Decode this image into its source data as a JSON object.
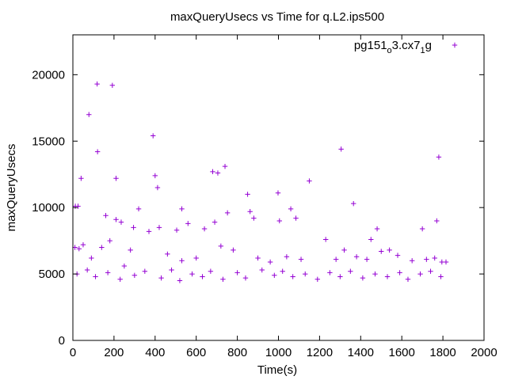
{
  "chart_data": {
    "type": "scatter",
    "title": "maxQueryUsecs vs Time for q.L2.ips500",
    "xlabel": "Time(s)",
    "ylabel": "maxQueryUsecs",
    "xlim": [
      0,
      2000
    ],
    "ylim": [
      0,
      23000
    ],
    "xticks": [
      0,
      200,
      400,
      600,
      800,
      1000,
      1200,
      1400,
      1600,
      1800,
      2000
    ],
    "yticks": [
      0,
      5000,
      10000,
      15000,
      20000
    ],
    "grid": false,
    "legend_position": "top-right",
    "marker": "+",
    "colors": {
      "series": "#9400d3",
      "axis": "#000000"
    },
    "series": [
      {
        "name": "pg151_o3.cx7_1g",
        "legend_parts": [
          "pg151",
          "o",
          "3.cx7",
          "1",
          "g"
        ],
        "points": [
          [
            78,
            17000
          ],
          [
            118,
            19300
          ],
          [
            120,
            14200
          ],
          [
            192,
            19200
          ],
          [
            210,
            12200
          ],
          [
            40,
            12200
          ],
          [
            12,
            10100
          ],
          [
            25,
            10100
          ],
          [
            160,
            9400
          ],
          [
            180,
            7500
          ],
          [
            210,
            9100
          ],
          [
            235,
            8900
          ],
          [
            295,
            8500
          ],
          [
            320,
            9900
          ],
          [
            370,
            8200
          ],
          [
            390,
            15400
          ],
          [
            400,
            12400
          ],
          [
            412,
            11500
          ],
          [
            420,
            8500
          ],
          [
            505,
            8300
          ],
          [
            530,
            9900
          ],
          [
            560,
            8800
          ],
          [
            640,
            8400
          ],
          [
            680,
            12700
          ],
          [
            690,
            8900
          ],
          [
            705,
            12600
          ],
          [
            740,
            13100
          ],
          [
            752,
            9600
          ],
          [
            850,
            11000
          ],
          [
            862,
            9700
          ],
          [
            880,
            9200
          ],
          [
            998,
            11100
          ],
          [
            1005,
            9000
          ],
          [
            1060,
            9900
          ],
          [
            1085,
            9200
          ],
          [
            1150,
            12000
          ],
          [
            1230,
            7600
          ],
          [
            1305,
            14400
          ],
          [
            1365,
            10300
          ],
          [
            1450,
            7600
          ],
          [
            1480,
            8400
          ],
          [
            1540,
            6800
          ],
          [
            1700,
            8400
          ],
          [
            1720,
            6100
          ],
          [
            1770,
            9000
          ],
          [
            1780,
            13800
          ],
          [
            1795,
            5900
          ],
          [
            1815,
            5900
          ],
          [
            10,
            7000
          ],
          [
            30,
            6900
          ],
          [
            50,
            7200
          ],
          [
            90,
            6200
          ],
          [
            140,
            7000
          ],
          [
            250,
            5600
          ],
          [
            280,
            6800
          ],
          [
            460,
            6500
          ],
          [
            530,
            6000
          ],
          [
            600,
            6200
          ],
          [
            720,
            7100
          ],
          [
            780,
            6800
          ],
          [
            900,
            6200
          ],
          [
            960,
            5900
          ],
          [
            1040,
            6300
          ],
          [
            1110,
            6100
          ],
          [
            1280,
            6100
          ],
          [
            1320,
            6800
          ],
          [
            1380,
            6300
          ],
          [
            1430,
            6100
          ],
          [
            1500,
            6700
          ],
          [
            1580,
            6400
          ],
          [
            1650,
            6000
          ],
          [
            1760,
            6200
          ],
          [
            20,
            5000
          ],
          [
            70,
            5300
          ],
          [
            110,
            4800
          ],
          [
            170,
            5100
          ],
          [
            230,
            4600
          ],
          [
            300,
            4900
          ],
          [
            350,
            5200
          ],
          [
            430,
            4700
          ],
          [
            480,
            5300
          ],
          [
            520,
            4500
          ],
          [
            580,
            5000
          ],
          [
            630,
            4800
          ],
          [
            670,
            5200
          ],
          [
            730,
            4600
          ],
          [
            800,
            5100
          ],
          [
            840,
            4700
          ],
          [
            920,
            5300
          ],
          [
            980,
            4900
          ],
          [
            1020,
            5200
          ],
          [
            1070,
            4800
          ],
          [
            1130,
            5000
          ],
          [
            1190,
            4600
          ],
          [
            1250,
            5100
          ],
          [
            1300,
            4800
          ],
          [
            1350,
            5200
          ],
          [
            1410,
            4700
          ],
          [
            1470,
            5000
          ],
          [
            1530,
            4800
          ],
          [
            1590,
            5100
          ],
          [
            1630,
            4600
          ],
          [
            1690,
            5000
          ],
          [
            1740,
            5200
          ],
          [
            1790,
            4800
          ]
        ]
      }
    ]
  }
}
